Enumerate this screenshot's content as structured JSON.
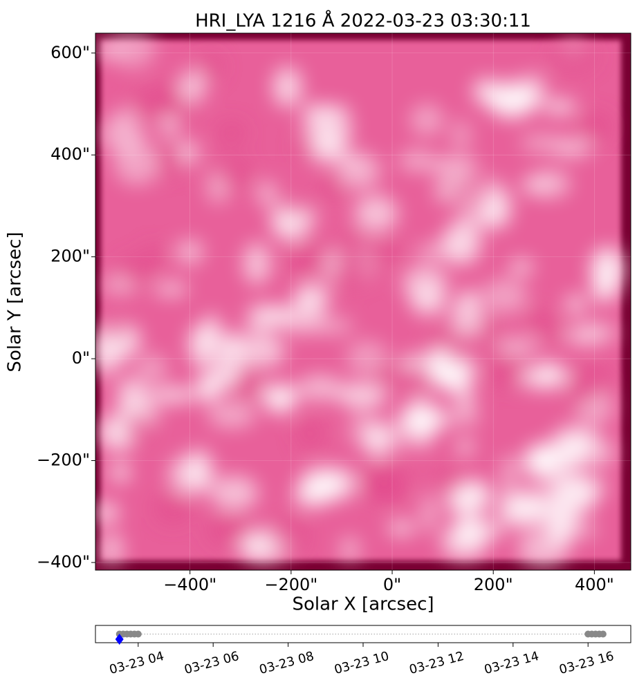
{
  "chart_data": [
    {
      "type": "image",
      "title": "HRI_LYA 1216 Å 2022-03-23 03:30:11",
      "xlabel": "Solar X [arcsec]",
      "ylabel": "Solar Y [arcsec]",
      "xlim": [
        -587,
        472
      ],
      "ylim": [
        -415,
        639
      ],
      "xticks": [
        {
          "value": -400,
          "label": "−400\""
        },
        {
          "value": -200,
          "label": "−200\""
        },
        {
          "value": 0,
          "label": "0\""
        },
        {
          "value": 200,
          "label": "200\""
        },
        {
          "value": 400,
          "label": "400\""
        }
      ],
      "yticks": [
        {
          "value": -400,
          "label": "−400\""
        },
        {
          "value": -200,
          "label": "−200\""
        },
        {
          "value": 0,
          "label": "0\""
        },
        {
          "value": 200,
          "label": "200\""
        },
        {
          "value": 400,
          "label": "400\""
        },
        {
          "value": 600,
          "label": "600\""
        }
      ],
      "color": "#e8609a",
      "edge_color": "#7a0033"
    },
    {
      "type": "scatter",
      "xlim": [
        2.86,
        17.14
      ],
      "ylim": [
        -1,
        1
      ],
      "xticks": [
        {
          "value": 4,
          "label": "03-23 04"
        },
        {
          "value": 6,
          "label": "03-23 06"
        },
        {
          "value": 8,
          "label": "03-23 08"
        },
        {
          "value": 10,
          "label": "03-23 10"
        },
        {
          "value": 12,
          "label": "03-23 12"
        },
        {
          "value": 14,
          "label": "03-23 14"
        },
        {
          "value": 16,
          "label": "03-23 16"
        }
      ],
      "series": [
        {
          "color": "#888888",
          "marker": "circle",
          "x": [
            3.5,
            3.6,
            3.7,
            3.8,
            3.9,
            4.0,
            16.0,
            16.1,
            16.2,
            16.3,
            16.4
          ],
          "values": [
            0,
            0,
            0,
            0,
            0,
            0,
            0,
            0,
            0,
            0,
            0
          ]
        },
        {
          "color": "#0000ff",
          "marker": "diamond",
          "x": [
            3.5
          ],
          "values": [
            -0.6
          ]
        }
      ]
    }
  ]
}
